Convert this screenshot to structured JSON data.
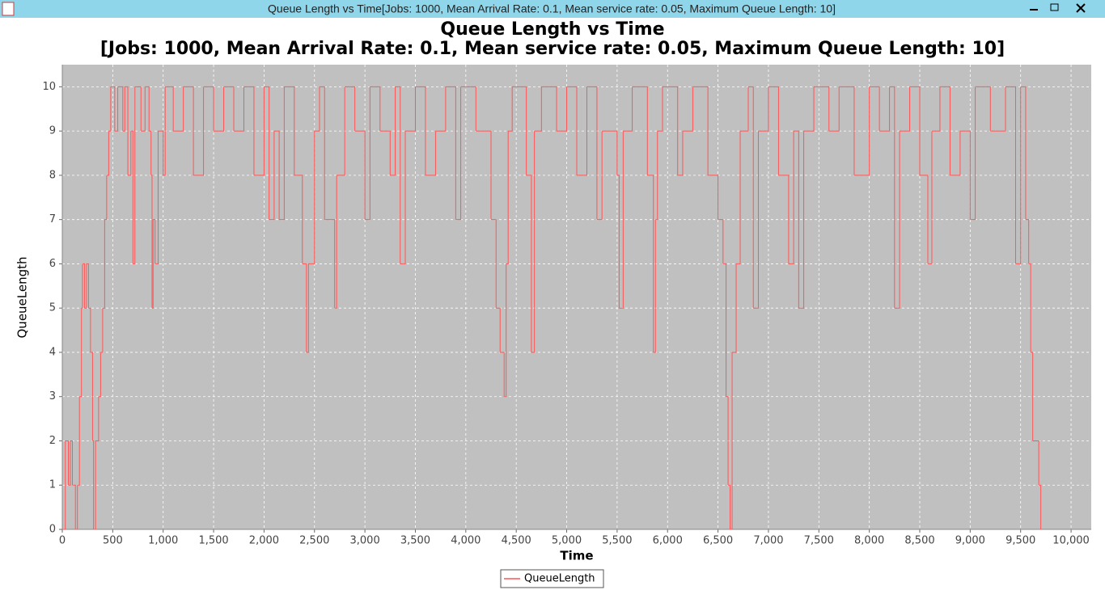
{
  "window": {
    "title": "Queue Length vs Time[Jobs: 1000, Mean Arrival Rate: 0.1, Mean service rate: 0.05, Maximum Queue Length: 10]"
  },
  "chart_data": {
    "type": "step-line",
    "title": "Queue Length vs Time",
    "subtitle": "[Jobs: 1000, Mean Arrival Rate: 0.1, Mean service rate: 0.05, Maximum Queue Length: 10]",
    "x_label": "Time",
    "y_label": "QueueLength",
    "xlim": [
      0,
      10200
    ],
    "ylim": [
      0,
      10.5
    ],
    "xticks": [
      0,
      500,
      {
        "value": 1000,
        "label": "1,000"
      },
      {
        "value": 1500,
        "label": "1,500"
      },
      {
        "value": 2000,
        "label": "2,000"
      },
      {
        "value": 2500,
        "label": "2,500"
      },
      {
        "value": 3000,
        "label": "3,000"
      },
      {
        "value": 3500,
        "label": "3,500"
      },
      {
        "value": 4000,
        "label": "4,000"
      },
      {
        "value": 4500,
        "label": "4,500"
      },
      {
        "value": 5000,
        "label": "5,000"
      },
      {
        "value": 5500,
        "label": "5,500"
      },
      {
        "value": 6000,
        "label": "6,000"
      },
      {
        "value": 6500,
        "label": "6,500"
      },
      {
        "value": 7000,
        "label": "7,000"
      },
      {
        "value": 7500,
        "label": "7,500"
      },
      {
        "value": 8000,
        "label": "8,000"
      },
      {
        "value": 8500,
        "label": "8,500"
      },
      {
        "value": 9000,
        "label": "9,000"
      },
      {
        "value": 9500,
        "label": "9,500"
      },
      {
        "value": 10000,
        "label": "10,000"
      }
    ],
    "yticks": [
      0,
      1,
      2,
      3,
      4,
      5,
      6,
      7,
      8,
      9,
      10
    ],
    "grid": true,
    "background": "#c0c0c0",
    "legend": "bottom",
    "series": [
      {
        "name": "QueueLength",
        "color": "#ff5555",
        "x": [
          0,
          30,
          60,
          80,
          100,
          130,
          150,
          170,
          190,
          200,
          220,
          240,
          260,
          280,
          300,
          310,
          330,
          360,
          380,
          400,
          420,
          440,
          460,
          480,
          520,
          550,
          600,
          620,
          650,
          680,
          700,
          720,
          780,
          820,
          860,
          880,
          890,
          900,
          920,
          950,
          1000,
          1020,
          1100,
          1200,
          1300,
          1400,
          1500,
          1600,
          1700,
          1800,
          1900,
          2000,
          2050,
          2100,
          2150,
          2200,
          2300,
          2380,
          2420,
          2440,
          2500,
          2550,
          2600,
          2700,
          2720,
          2800,
          2900,
          3000,
          3050,
          3150,
          3250,
          3300,
          3350,
          3400,
          3500,
          3600,
          3700,
          3800,
          3900,
          3950,
          4100,
          4250,
          4300,
          4340,
          4380,
          4400,
          4420,
          4460,
          4600,
          4650,
          4680,
          4750,
          4900,
          5000,
          5100,
          5200,
          5300,
          5350,
          5500,
          5520,
          5560,
          5650,
          5800,
          5860,
          5880,
          5900,
          5950,
          6100,
          6150,
          6250,
          6400,
          6500,
          6550,
          6580,
          6600,
          6620,
          6640,
          6680,
          6720,
          6800,
          6850,
          6900,
          7000,
          7100,
          7200,
          7250,
          7300,
          7350,
          7450,
          7600,
          7700,
          7850,
          8000,
          8100,
          8200,
          8250,
          8300,
          8400,
          8500,
          8580,
          8620,
          8700,
          8800,
          8900,
          9000,
          9050,
          9200,
          9350,
          9450,
          9500,
          9550,
          9580,
          9600,
          9620,
          9680,
          9700
        ],
        "values": [
          0,
          2,
          1,
          2,
          1,
          0,
          1,
          3,
          5,
          6,
          5,
          6,
          5,
          4,
          2,
          0,
          2,
          3,
          4,
          5,
          7,
          8,
          9,
          10,
          9,
          10,
          9,
          10,
          8,
          9,
          6,
          10,
          9,
          10,
          9,
          8,
          5,
          7,
          6,
          9,
          8,
          10,
          9,
          10,
          8,
          10,
          9,
          10,
          9,
          10,
          8,
          10,
          7,
          9,
          7,
          10,
          8,
          6,
          4,
          6,
          9,
          10,
          7,
          5,
          8,
          10,
          9,
          7,
          10,
          9,
          8,
          10,
          6,
          9,
          10,
          8,
          9,
          10,
          7,
          10,
          9,
          7,
          5,
          4,
          3,
          6,
          9,
          10,
          8,
          4,
          9,
          10,
          9,
          10,
          8,
          10,
          7,
          9,
          8,
          5,
          9,
          10,
          8,
          4,
          7,
          9,
          10,
          8,
          9,
          10,
          8,
          7,
          6,
          3,
          1,
          0,
          4,
          6,
          9,
          10,
          5,
          9,
          10,
          8,
          6,
          9,
          5,
          9,
          10,
          9,
          10,
          8,
          10,
          9,
          10,
          5,
          9,
          10,
          8,
          6,
          9,
          10,
          8,
          9,
          7,
          10,
          9,
          10,
          6,
          10,
          7,
          6,
          4,
          2,
          1,
          0
        ]
      }
    ]
  }
}
